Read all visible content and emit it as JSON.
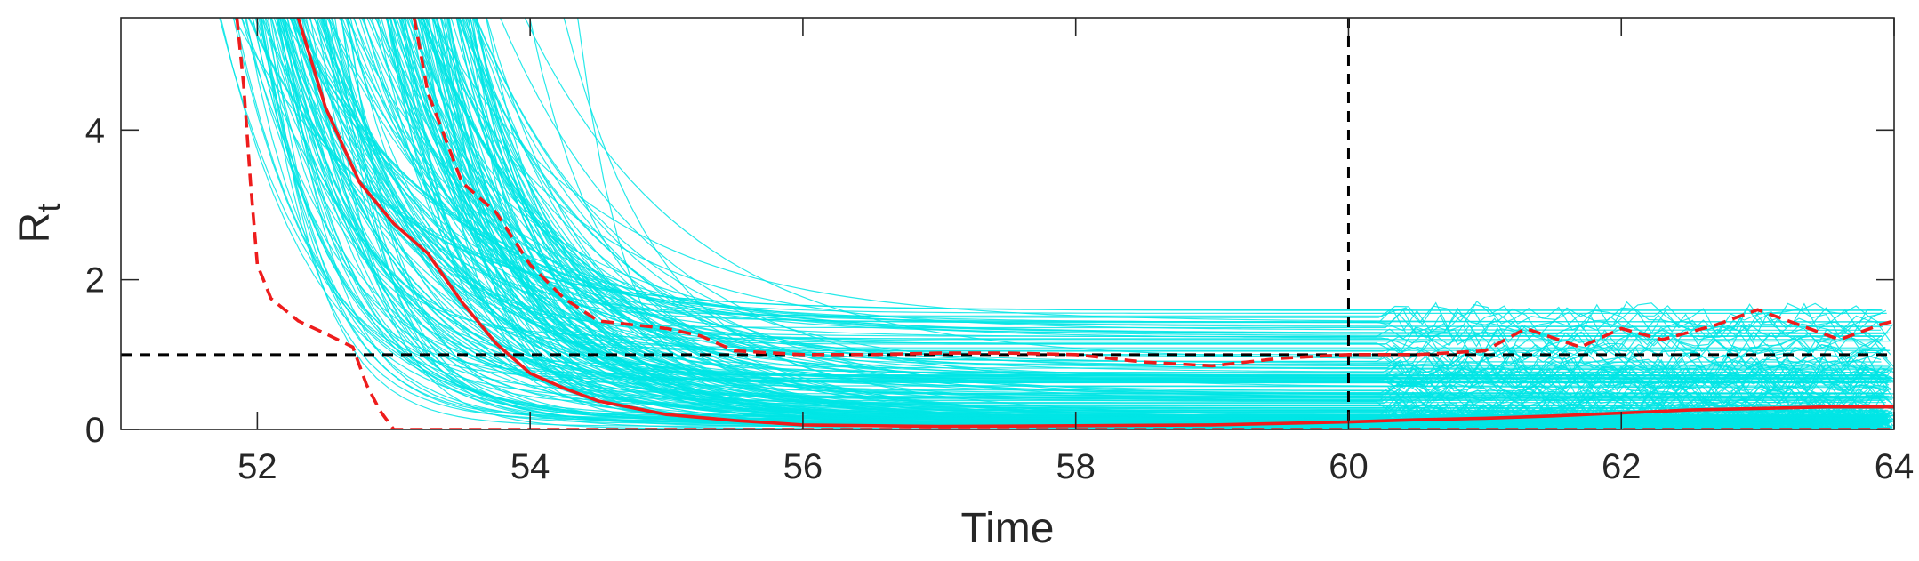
{
  "chart_data": {
    "type": "line",
    "title": "",
    "xlabel": "Time",
    "ylabel_main": "R",
    "ylabel_sub": "t",
    "xlim": [
      51,
      64
    ],
    "ylim": [
      0,
      5.5
    ],
    "xticks": [
      52,
      54,
      56,
      58,
      60,
      62,
      64
    ],
    "yticks": [
      0,
      2,
      4
    ],
    "grid": false,
    "legend": "none",
    "reference_lines": [
      {
        "orientation": "horizontal",
        "value": 1,
        "style": "dashed",
        "color": "#000000"
      },
      {
        "orientation": "vertical",
        "value": 60,
        "style": "dashed",
        "color": "#000000"
      }
    ],
    "sample_color": "#00e5e5",
    "sample_count": 220,
    "series": [
      {
        "role": "median",
        "color": "#ee1c1c",
        "style": "solid",
        "x": [
          52.3,
          52.5,
          52.75,
          53.0,
          53.25,
          53.5,
          53.75,
          54.0,
          54.25,
          54.5,
          55.0,
          55.5,
          56.0,
          57.0,
          58.0,
          59.0,
          60.0,
          60.5,
          61.0,
          61.5,
          62.0,
          62.5,
          63.0,
          63.5,
          64.0
        ],
        "y": [
          5.5,
          4.3,
          3.3,
          2.75,
          2.35,
          1.7,
          1.15,
          0.75,
          0.55,
          0.38,
          0.2,
          0.12,
          0.06,
          0.04,
          0.05,
          0.06,
          0.1,
          0.13,
          0.15,
          0.18,
          0.22,
          0.26,
          0.28,
          0.3,
          0.3
        ]
      },
      {
        "role": "upper-bound",
        "color": "#ee1c1c",
        "style": "dashed",
        "x": [
          53.15,
          53.25,
          53.5,
          53.75,
          54.0,
          54.25,
          54.5,
          55.0,
          55.25,
          55.5,
          56.0,
          56.5,
          57.0,
          57.5,
          58.0,
          58.5,
          59.0,
          59.5,
          60.0,
          60.5,
          61.0,
          61.3,
          61.7,
          62.0,
          62.3,
          62.7,
          63.0,
          63.3,
          63.6,
          63.9,
          64.0
        ],
        "y": [
          5.5,
          4.5,
          3.3,
          2.9,
          2.2,
          1.75,
          1.45,
          1.35,
          1.25,
          1.05,
          1.0,
          1.0,
          1.02,
          1.02,
          1.0,
          0.9,
          0.85,
          0.95,
          1.0,
          1.0,
          1.05,
          1.35,
          1.1,
          1.35,
          1.2,
          1.4,
          1.6,
          1.4,
          1.2,
          1.4,
          1.45
        ]
      },
      {
        "role": "lower-bound",
        "color": "#ee1c1c",
        "style": "dashed",
        "x": [
          51.85,
          51.9,
          51.95,
          52.0,
          52.1,
          52.3,
          52.5,
          52.7,
          52.8,
          52.9,
          53.0,
          53.5,
          54.0,
          60.0,
          64.0
        ],
        "y": [
          5.5,
          4.6,
          3.3,
          2.2,
          1.75,
          1.45,
          1.28,
          1.1,
          0.6,
          0.25,
          0.0,
          0.0,
          0.0,
          0.0,
          0.0
        ]
      }
    ]
  }
}
